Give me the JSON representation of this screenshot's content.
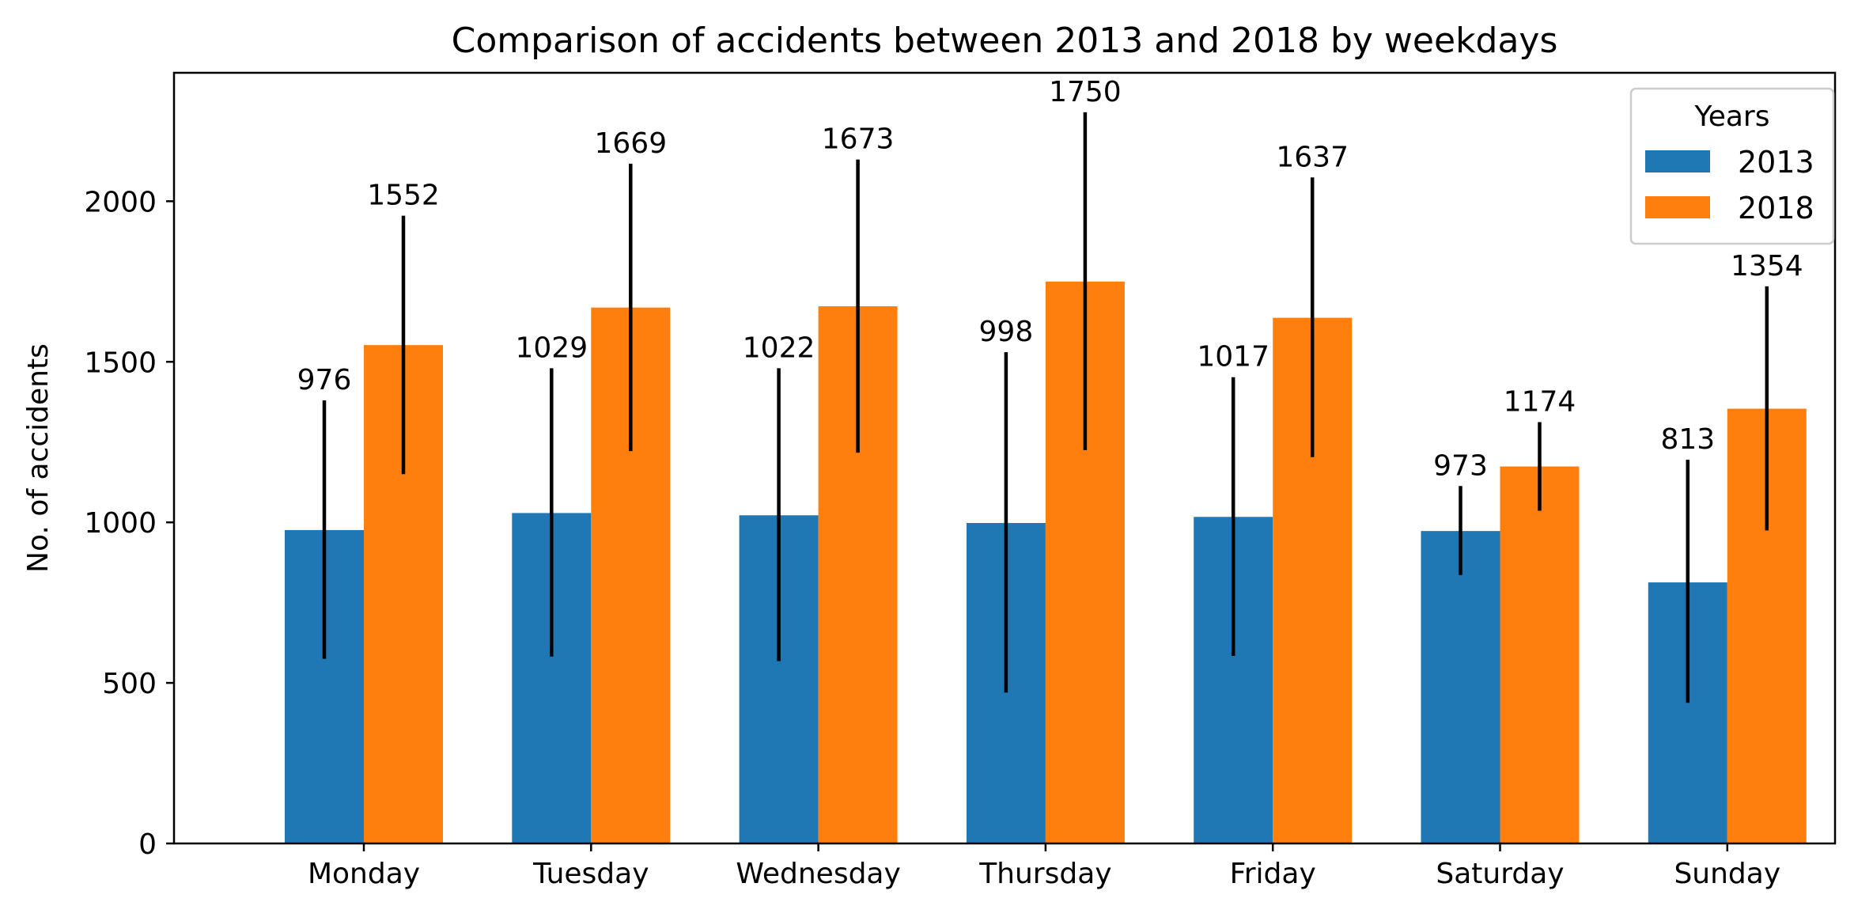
{
  "chart_data": {
    "type": "bar",
    "title": "Comparison of accidents between 2013 and 2018 by weekdays",
    "xlabel": "",
    "ylabel": "No. of accidents",
    "categories": [
      "Monday",
      "Tuesday",
      "Wednesday",
      "Thursday",
      "Friday",
      "Saturday",
      "Sunday"
    ],
    "series": [
      {
        "name": "2013",
        "color": "#1f77b4",
        "values": [
          976,
          1029,
          1022,
          998,
          1017,
          973,
          813
        ],
        "error_low": [
          575,
          582,
          568,
          470,
          584,
          836,
          438
        ],
        "error_high": [
          1380,
          1480,
          1480,
          1530,
          1452,
          1113,
          1195
        ]
      },
      {
        "name": "2018",
        "color": "#ff7f0e",
        "values": [
          1552,
          1669,
          1673,
          1750,
          1637,
          1174,
          1354
        ],
        "error_low": [
          1150,
          1222,
          1217,
          1225,
          1203,
          1036,
          975
        ],
        "error_high": [
          1955,
          2117,
          2130,
          2277,
          2074,
          1312,
          1735
        ]
      }
    ],
    "ylim": [
      0,
      2400
    ],
    "yticks": [
      0,
      500,
      1000,
      1500,
      2000
    ],
    "legend": {
      "title": "Years",
      "position": "top-right"
    },
    "grid": false,
    "value_labels": true
  }
}
